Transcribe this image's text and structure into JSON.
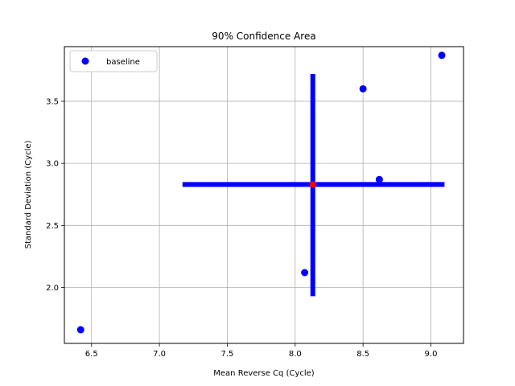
{
  "chart_data": {
    "type": "scatter",
    "title": "90% Confidence Area",
    "xlabel": "Mean Reverse Cq (Cycle)",
    "ylabel": "Standard Deviation (Cycle)",
    "xlim": [
      6.3,
      9.24
    ],
    "ylim": [
      1.55,
      3.94
    ],
    "xticks": [
      6.5,
      7.0,
      7.5,
      8.0,
      8.5,
      9.0
    ],
    "xtick_labels": [
      "6.5",
      "7.0",
      "7.5",
      "8.0",
      "8.5",
      "9.0"
    ],
    "yticks": [
      2.0,
      2.5,
      3.0,
      3.5
    ],
    "ytick_labels": [
      "2.0",
      "2.5",
      "3.0",
      "3.5"
    ],
    "grid": true,
    "legend_position": "top-left",
    "series": [
      {
        "name": "baseline",
        "color": "#0000ff",
        "marker": "circle",
        "points": [
          {
            "x": 6.42,
            "y": 1.66
          },
          {
            "x": 8.07,
            "y": 2.12
          },
          {
            "x": 8.5,
            "y": 3.6
          },
          {
            "x": 8.62,
            "y": 2.87
          },
          {
            "x": 9.08,
            "y": 3.87
          }
        ]
      }
    ],
    "center": {
      "x": 8.13,
      "y": 2.83,
      "color": "#ff0000"
    },
    "confidence_interval": {
      "color": "#0000ff",
      "x_range": [
        7.17,
        9.1
      ],
      "y_range": [
        1.93,
        3.72
      ]
    }
  }
}
